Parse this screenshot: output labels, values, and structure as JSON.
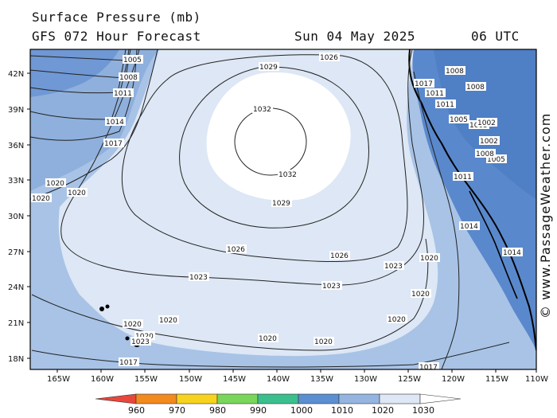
{
  "header": {
    "title": "Surface Pressure (mb)",
    "model": "GFS 072 Hour Forecast",
    "date": "Sun 04 May 2025",
    "time": "06 UTC"
  },
  "watermark": "© www.PassageWeather.com",
  "map": {
    "lat_labels": [
      "42N",
      "39N",
      "36N",
      "33N",
      "30N",
      "27N",
      "24N",
      "21N",
      "18N"
    ],
    "lon_labels": [
      "165W",
      "160W",
      "155W",
      "150W",
      "145W",
      "140W",
      "135W",
      "130W",
      "125W",
      "120W",
      "115W",
      "110W"
    ],
    "colors": {
      "ocean_low": "#4f7fc4",
      "ocean_1010": "#8fb0dc",
      "ocean_1020": "#a8c3e6",
      "ocean_1025": "#dde7f5",
      "ocean_1030": "#ffffff",
      "land": "#5a88cc",
      "isobar": "#222222"
    },
    "isobar_labels": [
      "1005",
      "1008",
      "1011",
      "1014",
      "1017",
      "1020",
      "1020",
      "1020",
      "1020",
      "1020",
      "1020",
      "1020",
      "1020",
      "1020",
      "1020",
      "1023",
      "1023",
      "1023",
      "1026",
      "1026",
      "1029",
      "1029",
      "1032",
      "1032",
      "1026",
      "1017",
      "1017",
      "1020",
      "1023",
      "1014",
      "1014",
      "1011",
      "1011",
      "1008",
      "1008",
      "1005",
      "1005",
      "1002",
      "1002",
      "1005",
      "1011",
      "1008",
      "1017"
    ]
  },
  "legend": {
    "ticks": [
      "960",
      "970",
      "980",
      "990",
      "1000",
      "1010",
      "1020",
      "1030"
    ],
    "colors": [
      "#e8483c",
      "#f28a1e",
      "#f7d21f",
      "#7ad65a",
      "#3bbf8e",
      "#5b8fd2",
      "#95b5e0",
      "#dde7f5"
    ]
  }
}
